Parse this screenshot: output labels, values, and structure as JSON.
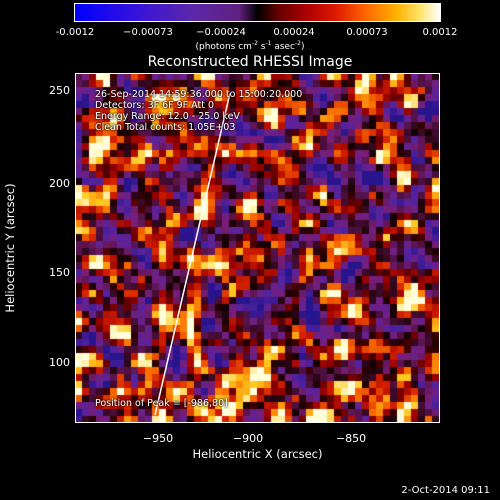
{
  "colorbar": {
    "ticks": [
      "-0.0012",
      "−0.00073",
      "−0.00024",
      "0.00024",
      "0.00073",
      "0.0012"
    ],
    "units_prefix": "(photons cm",
    "units_exp1": "-2",
    "units_mid": " s",
    "units_exp2": "-1",
    "units_mid2": " asec",
    "units_exp3": "-2",
    "units_suffix": ")"
  },
  "title": "Reconstructed RHESSI Image",
  "info": {
    "line1": "26-Sep-2014 14:59:36.000 to 15:00:20.000",
    "line2": "Detectors: 3F 6F 9F  Att 0",
    "line3": "Energy Range: 12.0 - 25.0 keV",
    "line4": "Clean    Total counts: 1.05E+03",
    "peak": "Position of Peak = [-986,80]"
  },
  "axes": {
    "xlabel": "Heliocentric X (arcsec)",
    "ylabel": "Heliocentric Y (arcsec)",
    "xticks": [
      "−950",
      "−900",
      "−850"
    ],
    "yticks": [
      "250",
      "200",
      "150",
      "100"
    ]
  },
  "timestamp": "2-Oct-2014 09:11",
  "colors": {
    "background": "#000000",
    "frame": "#ffffff"
  }
}
